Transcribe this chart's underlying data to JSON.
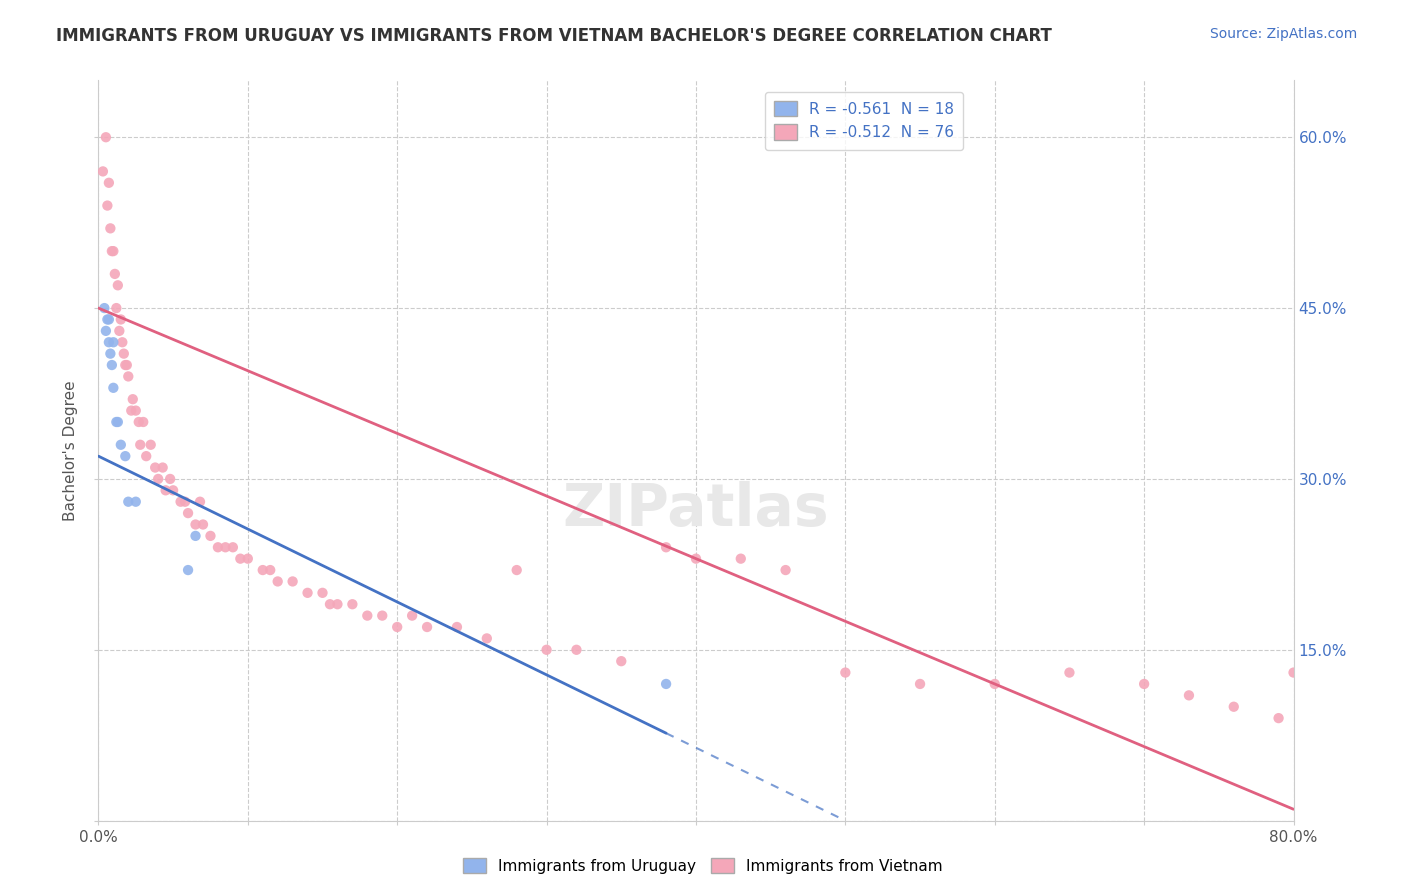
{
  "title": "IMMIGRANTS FROM URUGUAY VS IMMIGRANTS FROM VIETNAM BACHELOR'S DEGREE CORRELATION CHART",
  "source": "Source: ZipAtlas.com",
  "ylabel": "Bachelor's Degree",
  "xlim": [
    0.0,
    0.8
  ],
  "ylim": [
    0.0,
    0.65
  ],
  "xticks": [
    0.0,
    0.1,
    0.2,
    0.3,
    0.4,
    0.5,
    0.6,
    0.7,
    0.8
  ],
  "xticklabels": [
    "0.0%",
    "",
    "",
    "",
    "",
    "",
    "",
    "",
    "80.0%"
  ],
  "yticks": [
    0.0,
    0.15,
    0.3,
    0.45,
    0.6
  ],
  "yticklabels_right": [
    "",
    "15.0%",
    "30.0%",
    "45.0%",
    "60.0%"
  ],
  "uruguay_R": -0.561,
  "uruguay_N": 18,
  "vietnam_R": -0.512,
  "vietnam_N": 76,
  "uruguay_color": "#92B4EC",
  "vietnam_color": "#F4A7B9",
  "uruguay_line_color": "#4472C4",
  "vietnam_line_color": "#E06080",
  "watermark": "ZIPatlas",
  "background_color": "#FFFFFF",
  "grid_color": "#CCCCCC",
  "uruguay_line_x0": 0.0,
  "uruguay_line_y0": 0.32,
  "uruguay_line_x1": 0.5,
  "uruguay_line_y1": 0.0,
  "vietnam_line_x0": 0.0,
  "vietnam_line_y0": 0.45,
  "vietnam_line_x1": 0.8,
  "vietnam_line_y1": 0.01,
  "uru_x": [
    0.004,
    0.005,
    0.006,
    0.007,
    0.007,
    0.008,
    0.009,
    0.01,
    0.01,
    0.012,
    0.013,
    0.015,
    0.018,
    0.02,
    0.025,
    0.06,
    0.065,
    0.38
  ],
  "uru_y": [
    0.45,
    0.43,
    0.44,
    0.42,
    0.44,
    0.41,
    0.4,
    0.38,
    0.42,
    0.35,
    0.35,
    0.33,
    0.32,
    0.28,
    0.28,
    0.22,
    0.25,
    0.12
  ],
  "viet_x": [
    0.003,
    0.005,
    0.006,
    0.007,
    0.008,
    0.009,
    0.01,
    0.011,
    0.012,
    0.013,
    0.014,
    0.015,
    0.016,
    0.017,
    0.018,
    0.019,
    0.02,
    0.022,
    0.023,
    0.025,
    0.027,
    0.028,
    0.03,
    0.032,
    0.035,
    0.038,
    0.04,
    0.043,
    0.045,
    0.048,
    0.05,
    0.055,
    0.058,
    0.06,
    0.065,
    0.068,
    0.07,
    0.075,
    0.08,
    0.085,
    0.09,
    0.095,
    0.1,
    0.11,
    0.115,
    0.12,
    0.13,
    0.14,
    0.15,
    0.155,
    0.16,
    0.17,
    0.18,
    0.19,
    0.2,
    0.21,
    0.22,
    0.24,
    0.26,
    0.28,
    0.3,
    0.32,
    0.35,
    0.38,
    0.4,
    0.43,
    0.46,
    0.5,
    0.55,
    0.6,
    0.65,
    0.7,
    0.73,
    0.76,
    0.79,
    0.8
  ],
  "viet_y": [
    0.57,
    0.6,
    0.54,
    0.56,
    0.52,
    0.5,
    0.5,
    0.48,
    0.45,
    0.47,
    0.43,
    0.44,
    0.42,
    0.41,
    0.4,
    0.4,
    0.39,
    0.36,
    0.37,
    0.36,
    0.35,
    0.33,
    0.35,
    0.32,
    0.33,
    0.31,
    0.3,
    0.31,
    0.29,
    0.3,
    0.29,
    0.28,
    0.28,
    0.27,
    0.26,
    0.28,
    0.26,
    0.25,
    0.24,
    0.24,
    0.24,
    0.23,
    0.23,
    0.22,
    0.22,
    0.21,
    0.21,
    0.2,
    0.2,
    0.19,
    0.19,
    0.19,
    0.18,
    0.18,
    0.17,
    0.18,
    0.17,
    0.17,
    0.16,
    0.22,
    0.15,
    0.15,
    0.14,
    0.24,
    0.23,
    0.23,
    0.22,
    0.13,
    0.12,
    0.12,
    0.13,
    0.12,
    0.11,
    0.1,
    0.09,
    0.13
  ]
}
